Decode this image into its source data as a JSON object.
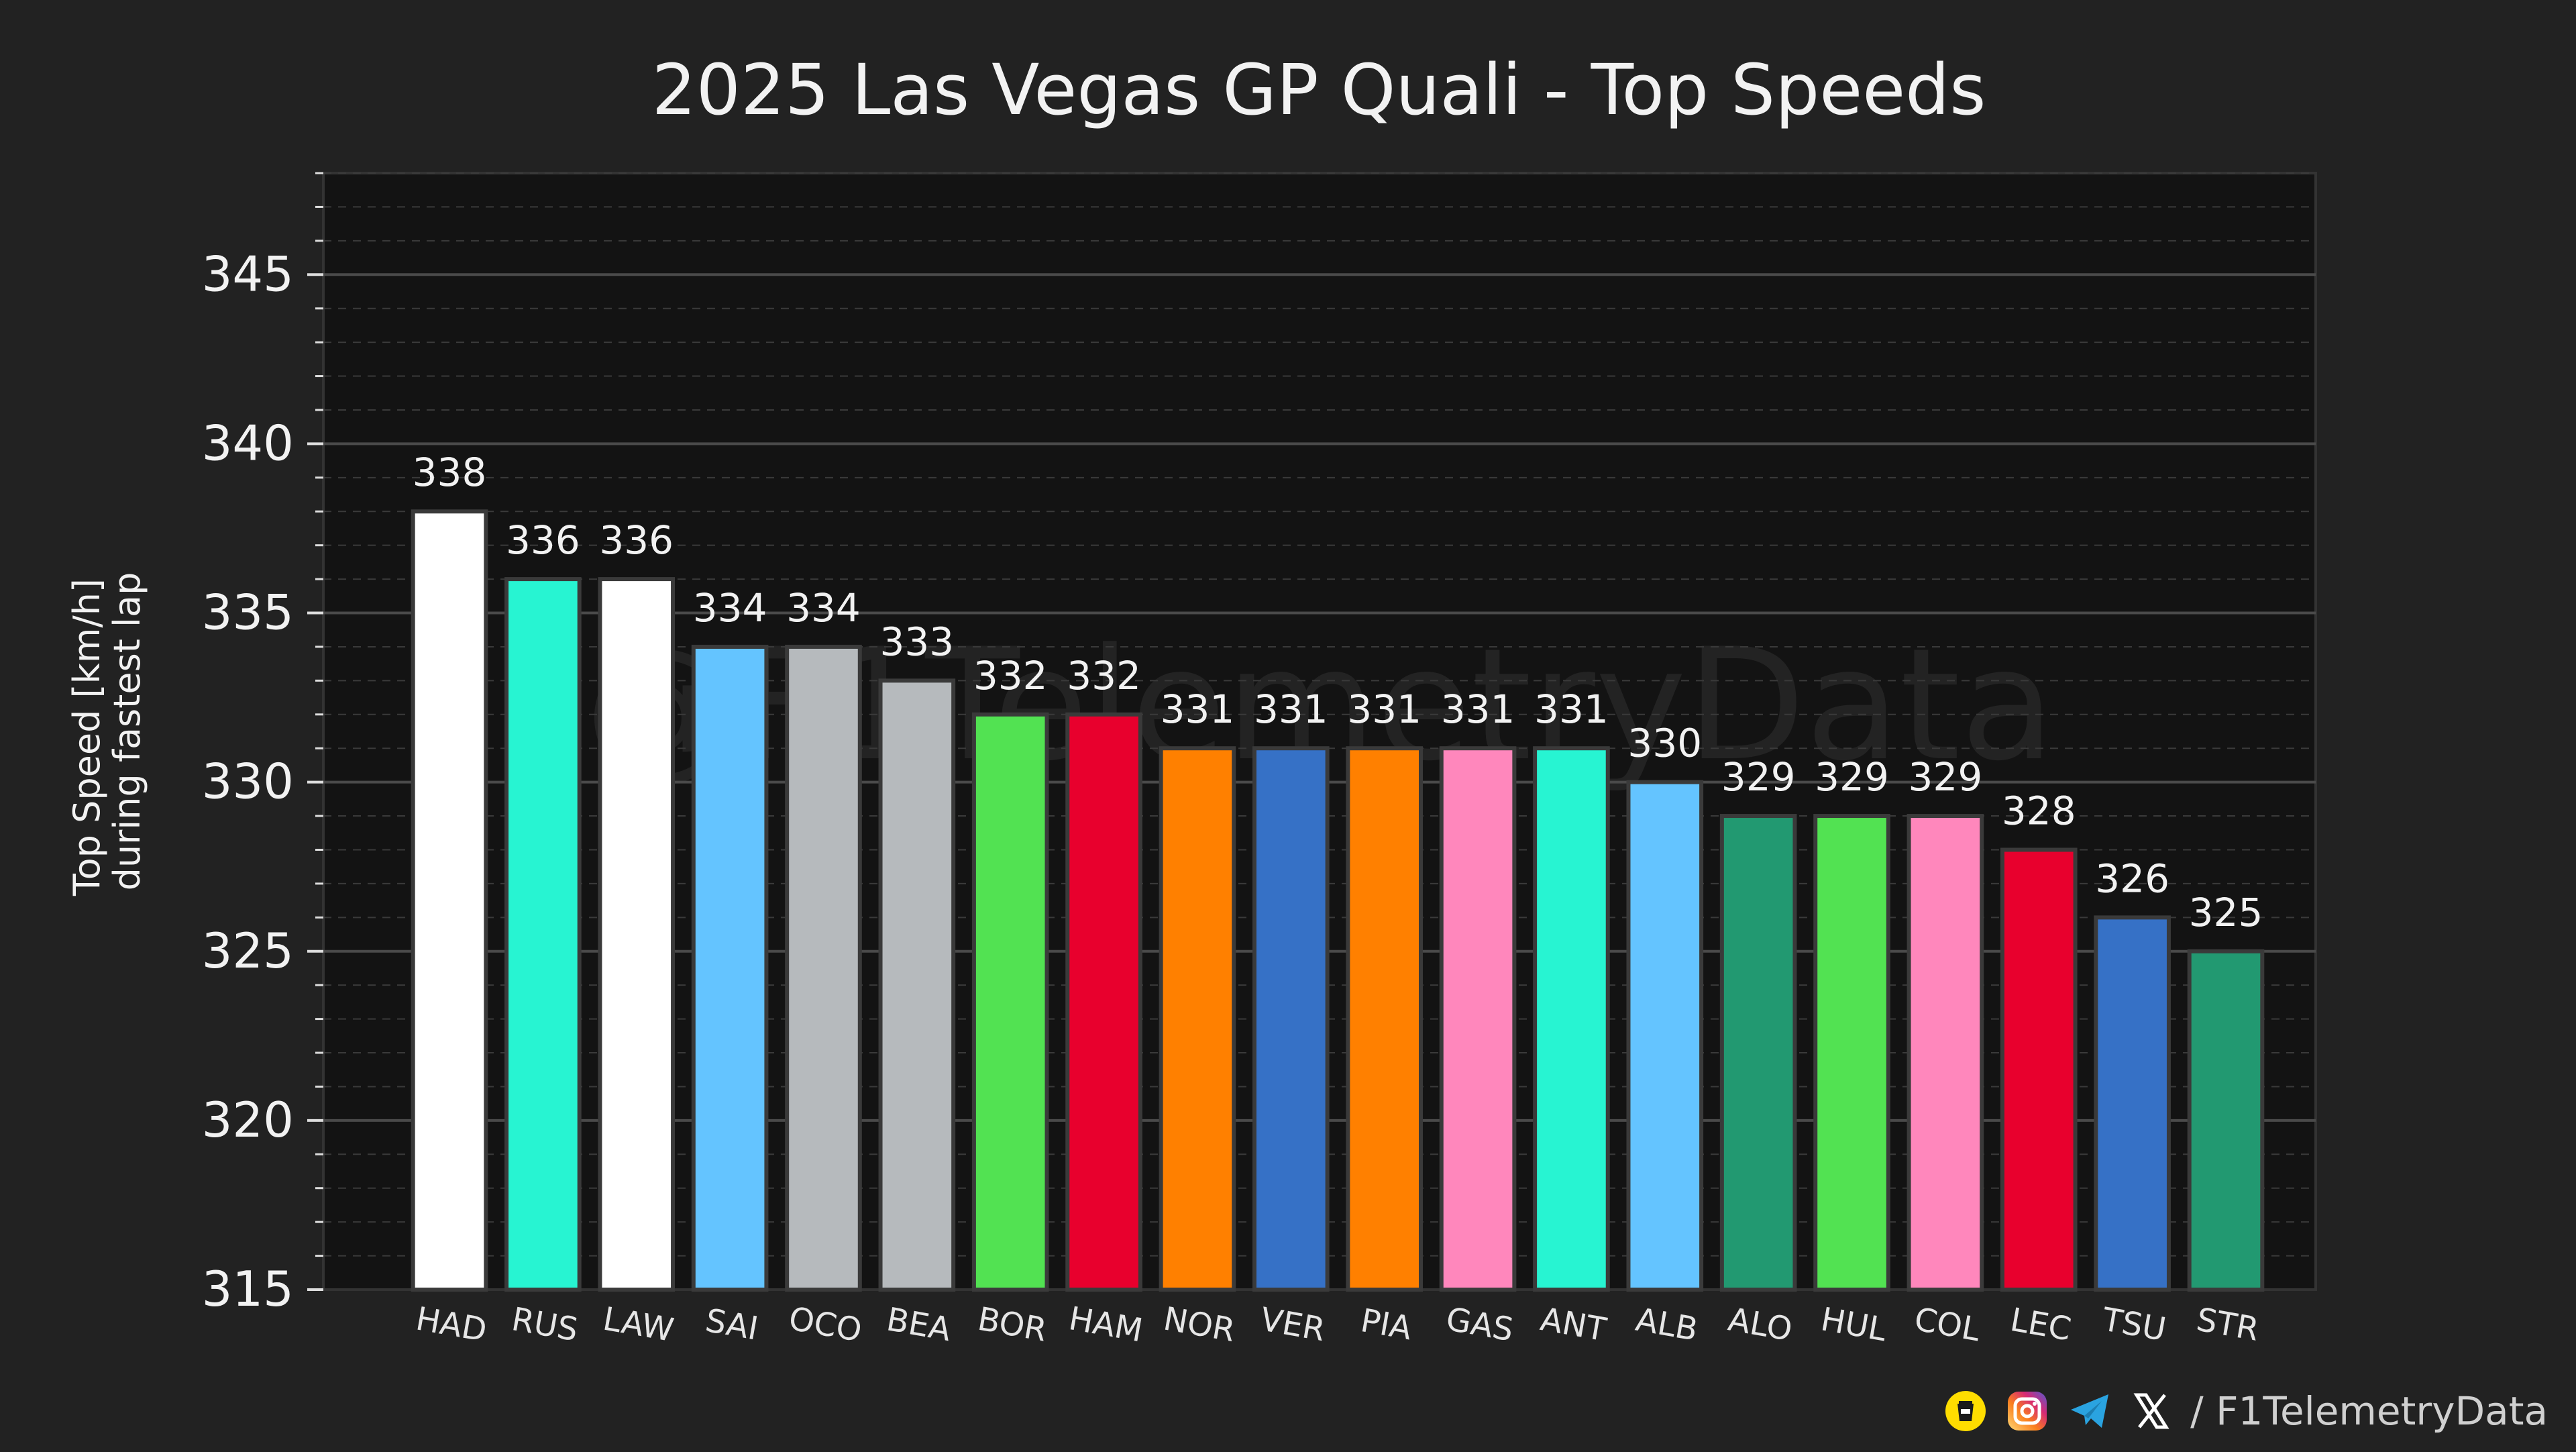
{
  "colors": {
    "background": "#222222",
    "plot_background": "#131313",
    "grid": "#4a4a4a",
    "text": "#f2f2f2",
    "bar_edge": "#3a3a3a"
  },
  "watermark": "@F1TelemetryData",
  "footer": {
    "handle": "/ F1TelemetryData",
    "icons": [
      "buymeacoffee-icon",
      "instagram-icon",
      "telegram-icon",
      "x-icon"
    ]
  },
  "chart_data": {
    "type": "bar",
    "title": "2025 Las Vegas GP Quali - Top Speeds",
    "xlabel": "",
    "ylabel_lines": [
      "Top Speed [km/h]",
      "during fastest lap"
    ],
    "ylim": [
      315,
      348
    ],
    "yticks": [
      315,
      320,
      325,
      330,
      335,
      340,
      345
    ],
    "grid": true,
    "categories": [
      "HAD",
      "RUS",
      "LAW",
      "SAI",
      "OCO",
      "BEA",
      "BOR",
      "HAM",
      "NOR",
      "VER",
      "PIA",
      "GAS",
      "ANT",
      "ALB",
      "ALO",
      "HUL",
      "COL",
      "LEC",
      "TSU",
      "STR"
    ],
    "values": [
      338,
      336,
      336,
      334,
      334,
      333,
      332,
      332,
      331,
      331,
      331,
      331,
      331,
      330,
      329,
      329,
      329,
      328,
      326,
      325
    ],
    "bar_colors": [
      "#ffffff",
      "#27f4d2",
      "#ffffff",
      "#64c4ff",
      "#b6babd",
      "#b6babd",
      "#52e252",
      "#e8002d",
      "#ff8000",
      "#3671c6",
      "#ff8000",
      "#ff87bc",
      "#27f4d2",
      "#64c4ff",
      "#229971",
      "#52e252",
      "#ff87bc",
      "#e8002d",
      "#3671c6",
      "#229971"
    ],
    "data_labels": [
      "338",
      "336",
      "336",
      "334",
      "334",
      "333",
      "332",
      "332",
      "331",
      "331",
      "331",
      "331",
      "331",
      "330",
      "329",
      "329",
      "329",
      "328",
      "326",
      "325"
    ]
  }
}
